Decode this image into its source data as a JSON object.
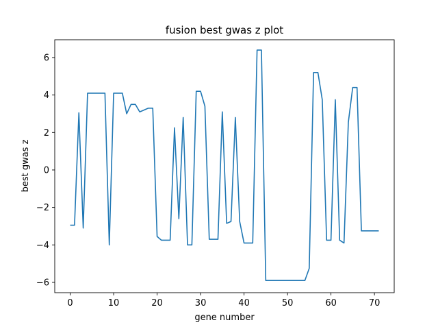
{
  "chart_data": {
    "type": "line",
    "title": "fusion best gwas z plot",
    "xlabel": "gene number",
    "ylabel": "best gwas z",
    "xlim": [
      -3.55,
      74.55
    ],
    "ylim": [
      -6.55,
      6.95
    ],
    "xticks": [
      0,
      10,
      20,
      30,
      40,
      50,
      60,
      70
    ],
    "yticks": [
      -6,
      -4,
      -2,
      0,
      2,
      4,
      6
    ],
    "grid": false,
    "line_color": "#1f77b4",
    "series": [
      {
        "x": [
          0,
          1,
          2,
          3,
          4,
          5,
          6,
          7,
          8,
          9,
          10,
          11,
          12,
          13,
          14,
          15,
          16,
          17,
          18,
          19,
          20,
          21,
          22,
          23,
          24,
          25,
          26,
          27,
          28,
          29,
          30,
          31,
          32,
          33,
          34,
          35,
          36,
          37,
          38,
          39,
          40,
          41,
          42,
          43,
          44,
          45,
          46,
          47,
          48,
          49,
          50,
          51,
          52,
          53,
          54,
          55,
          56,
          57,
          58,
          59,
          60,
          61,
          62,
          63,
          64,
          65,
          66,
          67,
          68,
          69,
          70,
          71
        ],
        "values": [
          -2.95,
          -2.95,
          3.05,
          -3.1,
          4.1,
          4.1,
          4.1,
          4.1,
          4.1,
          -4.0,
          4.1,
          4.1,
          4.1,
          3.0,
          3.5,
          3.5,
          3.1,
          3.2,
          3.3,
          3.3,
          -3.55,
          -3.75,
          -3.75,
          -3.75,
          2.25,
          -2.6,
          2.8,
          -4.0,
          -4.0,
          4.2,
          4.2,
          3.4,
          -3.7,
          -3.7,
          -3.7,
          3.1,
          -2.85,
          -2.75,
          2.8,
          -2.75,
          -3.9,
          -3.9,
          -3.9,
          6.4,
          6.4,
          -5.9,
          -5.9,
          -5.9,
          -5.9,
          -5.9,
          -5.9,
          -5.9,
          -5.9,
          -5.9,
          -5.9,
          -5.25,
          5.2,
          5.2,
          3.75,
          -3.75,
          -3.75,
          3.75,
          -3.75,
          -3.9,
          2.55,
          4.4,
          4.4,
          -3.25,
          -3.25,
          -3.25,
          -3.25,
          -3.25
        ]
      }
    ]
  }
}
